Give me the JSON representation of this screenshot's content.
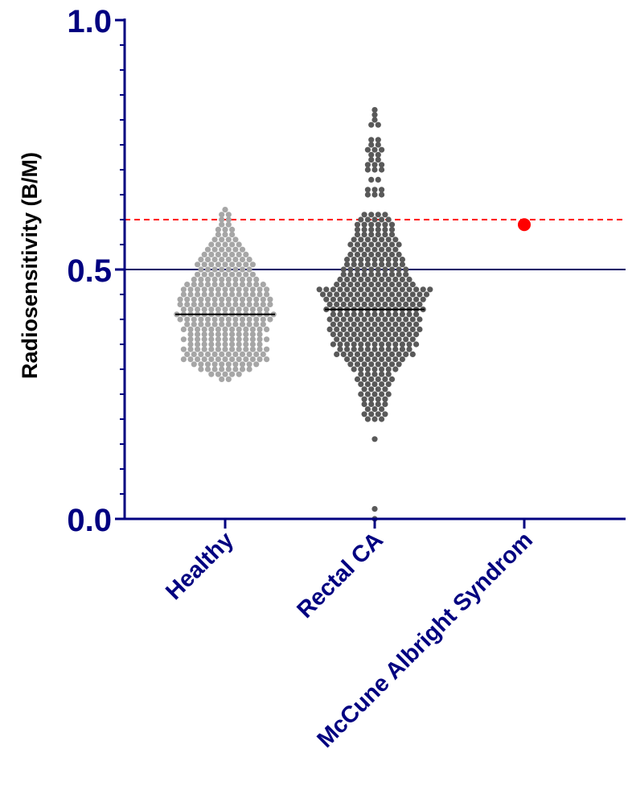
{
  "chart_data": {
    "type": "scatter",
    "subtype": "beeswarm dot plot",
    "ylabel": "Radiosensitivity (B/M)",
    "xlabel": "",
    "ylim": [
      0.0,
      1.0
    ],
    "y_ticks": [
      "0.0",
      "0.5",
      "1.0"
    ],
    "y_minor_step": 0.05,
    "grid": false,
    "categories": [
      "Healthy",
      "Rectal CA",
      "McCune Albright Syndrom"
    ],
    "series": [
      {
        "category": "Healthy",
        "color": "#a6a6a6",
        "median": 0.41,
        "distribution": [
          [
            0.28,
            2
          ],
          [
            0.29,
            5
          ],
          [
            0.3,
            8
          ],
          [
            0.31,
            10
          ],
          [
            0.32,
            13
          ],
          [
            0.33,
            12
          ],
          [
            0.34,
            13
          ],
          [
            0.35,
            11
          ],
          [
            0.36,
            13
          ],
          [
            0.37,
            11
          ],
          [
            0.38,
            13
          ],
          [
            0.39,
            12
          ],
          [
            0.4,
            14
          ],
          [
            0.41,
            15
          ],
          [
            0.42,
            13
          ],
          [
            0.43,
            14
          ],
          [
            0.44,
            14
          ],
          [
            0.45,
            13
          ],
          [
            0.46,
            13
          ],
          [
            0.47,
            12
          ],
          [
            0.48,
            10
          ],
          [
            0.49,
            9
          ],
          [
            0.5,
            8
          ],
          [
            0.51,
            9
          ],
          [
            0.52,
            8
          ],
          [
            0.53,
            7
          ],
          [
            0.54,
            6
          ],
          [
            0.55,
            5
          ],
          [
            0.56,
            4
          ],
          [
            0.57,
            3
          ],
          [
            0.58,
            3
          ],
          [
            0.59,
            2
          ],
          [
            0.6,
            2
          ],
          [
            0.61,
            2
          ],
          [
            0.62,
            1
          ]
        ]
      },
      {
        "category": "Rectal CA",
        "color": "#595959",
        "median": 0.42,
        "distribution": [
          [
            0.02,
            1
          ],
          [
            0.0,
            1
          ],
          [
            0.16,
            1
          ],
          [
            0.2,
            3
          ],
          [
            0.21,
            4
          ],
          [
            0.22,
            3
          ],
          [
            0.23,
            4
          ],
          [
            0.24,
            4
          ],
          [
            0.25,
            5
          ],
          [
            0.26,
            4
          ],
          [
            0.27,
            5
          ],
          [
            0.28,
            6
          ],
          [
            0.29,
            5
          ],
          [
            0.3,
            7
          ],
          [
            0.31,
            8
          ],
          [
            0.32,
            9
          ],
          [
            0.33,
            12
          ],
          [
            0.34,
            11
          ],
          [
            0.35,
            13
          ],
          [
            0.36,
            12
          ],
          [
            0.37,
            13
          ],
          [
            0.38,
            14
          ],
          [
            0.39,
            13
          ],
          [
            0.4,
            14
          ],
          [
            0.41,
            13
          ],
          [
            0.42,
            15
          ],
          [
            0.43,
            14
          ],
          [
            0.44,
            15
          ],
          [
            0.45,
            16
          ],
          [
            0.46,
            17
          ],
          [
            0.47,
            12
          ],
          [
            0.48,
            11
          ],
          [
            0.49,
            10
          ],
          [
            0.5,
            10
          ],
          [
            0.51,
            9
          ],
          [
            0.52,
            9
          ],
          [
            0.53,
            8
          ],
          [
            0.54,
            7
          ],
          [
            0.55,
            8
          ],
          [
            0.56,
            7
          ],
          [
            0.57,
            6
          ],
          [
            0.58,
            6
          ],
          [
            0.59,
            6
          ],
          [
            0.6,
            5
          ],
          [
            0.61,
            4
          ],
          [
            0.65,
            3
          ],
          [
            0.66,
            3
          ],
          [
            0.68,
            2
          ],
          [
            0.7,
            3
          ],
          [
            0.71,
            3
          ],
          [
            0.72,
            2
          ],
          [
            0.73,
            2
          ],
          [
            0.74,
            3
          ],
          [
            0.75,
            2
          ],
          [
            0.76,
            2
          ],
          [
            0.79,
            2
          ],
          [
            0.8,
            1
          ],
          [
            0.81,
            1
          ],
          [
            0.82,
            1
          ]
        ]
      },
      {
        "category": "McCune Albright Syndrom",
        "color": "#ff0000",
        "values": [
          0.59
        ]
      }
    ],
    "reference_lines": [
      {
        "y": 0.5,
        "style": "solid",
        "color": "#000066"
      },
      {
        "y": 0.6,
        "style": "dashed",
        "color": "#ff0000"
      }
    ],
    "axis_color": "#000080"
  }
}
